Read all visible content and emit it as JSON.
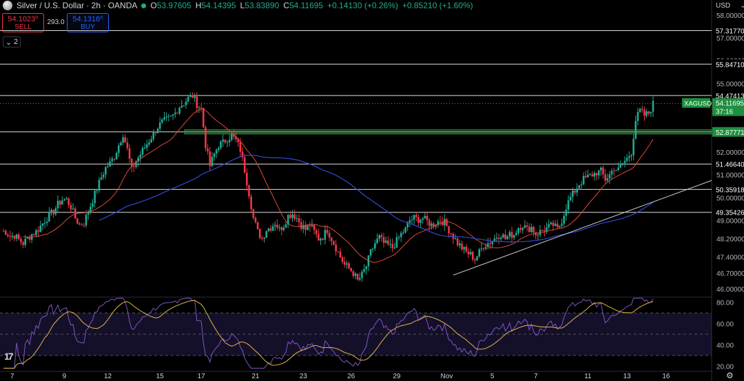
{
  "header": {
    "title": "Silver / U.S. Dollar · 2h · OANDA",
    "open_label": "O",
    "open": "53.97605",
    "high_label": "H",
    "high": "54.14395",
    "low_label": "L",
    "low": "53.83890",
    "close_label": "C",
    "close": "54.11695",
    "change": "+0.14130 (+0.26%)",
    "change2": "+0.85210 (+1.60%)"
  },
  "trade": {
    "sell_price": "54.1023⁰",
    "sell_label": "SELL",
    "spread": "293.0",
    "buy_price": "54.1316⁰",
    "buy_label": "BUY"
  },
  "indicator_toggle": {
    "count": "2"
  },
  "currency": "USD",
  "colors": {
    "up": "#22ab94",
    "down": "#f23645",
    "ma_fast": "#e04a3a",
    "ma_slow": "#3149d8",
    "rsi": "#7e57c2",
    "rsi_ma": "#e0b84a",
    "trendline": "#d9d9d9",
    "level": "#e0e0e0",
    "tag_green": "#1e8f3f",
    "rsi_band": "#15102a"
  },
  "chart_data": {
    "type": "candlestick",
    "symbol": "XAGUSD",
    "price_axis_ticks": [
      "58.00000",
      "57.00000",
      "56.00000",
      "55.00000",
      "52.00000",
      "51.00000",
      "50.00000",
      "49.00000",
      "48.20000",
      "47.40000",
      "46.70000",
      "46.00000"
    ],
    "x_ticks": [
      "7",
      "9",
      "12",
      "15",
      "17",
      "21",
      "23",
      "26",
      "29",
      "Nov",
      "5",
      "7",
      "11",
      "13",
      "16"
    ],
    "levels": [
      "57.31770",
      "55.84710",
      "54.47413",
      "52.87771",
      "51.46640",
      "50.35918",
      "49.35426"
    ],
    "support_zone": [
      "52.87771"
    ],
    "current_price": "54.11695",
    "current_tag": "XAGUSD",
    "countdown": "37:16",
    "anchors": [
      [
        0,
        48.55
      ],
      [
        2,
        48.5
      ],
      [
        4,
        48.3
      ],
      [
        6,
        48.35
      ],
      [
        8,
        48.15
      ],
      [
        10,
        48.0
      ],
      [
        12,
        48.2
      ],
      [
        14,
        48.4
      ],
      [
        16,
        48.5
      ],
      [
        18,
        48.75
      ],
      [
        20,
        49.0
      ],
      [
        22,
        49.2
      ],
      [
        24,
        49.4
      ],
      [
        26,
        49.7
      ],
      [
        28,
        49.9
      ],
      [
        30,
        49.9
      ],
      [
        32,
        49.6
      ],
      [
        34,
        49.1
      ],
      [
        36,
        48.8
      ],
      [
        38,
        48.9
      ],
      [
        40,
        49.4
      ],
      [
        42,
        49.9
      ],
      [
        44,
        50.4
      ],
      [
        46,
        50.9
      ],
      [
        48,
        51.3
      ],
      [
        50,
        51.5
      ],
      [
        52,
        51.8
      ],
      [
        54,
        52.3
      ],
      [
        56,
        52.8
      ],
      [
        58,
        52.1
      ],
      [
        60,
        51.2
      ],
      [
        62,
        51.6
      ],
      [
        64,
        51.9
      ],
      [
        66,
        52.2
      ],
      [
        68,
        52.5
      ],
      [
        70,
        52.8
      ],
      [
        72,
        53.1
      ],
      [
        74,
        53.3
      ],
      [
        76,
        53.4
      ],
      [
        78,
        53.5
      ],
      [
        80,
        53.7
      ],
      [
        82,
        54.0
      ],
      [
        84,
        54.15
      ],
      [
        86,
        54.35
      ],
      [
        88,
        54.45
      ],
      [
        90,
        54.1
      ],
      [
        92,
        53.9
      ],
      [
        94,
        52.3
      ],
      [
        96,
        51.4
      ],
      [
        98,
        51.9
      ],
      [
        100,
        52.3
      ],
      [
        102,
        52.4
      ],
      [
        104,
        52.6
      ],
      [
        106,
        52.7
      ],
      [
        108,
        52.5
      ],
      [
        110,
        52.1
      ],
      [
        112,
        51.2
      ],
      [
        114,
        50.2
      ],
      [
        116,
        49.1
      ],
      [
        118,
        48.5
      ],
      [
        120,
        48.2
      ],
      [
        122,
        48.6
      ],
      [
        124,
        48.7
      ],
      [
        126,
        48.9
      ],
      [
        128,
        48.6
      ],
      [
        130,
        48.8
      ],
      [
        132,
        49.2
      ],
      [
        134,
        49.3
      ],
      [
        136,
        49.1
      ],
      [
        138,
        48.8
      ],
      [
        140,
        48.6
      ],
      [
        142,
        48.8
      ],
      [
        144,
        48.5
      ],
      [
        146,
        48.2
      ],
      [
        148,
        48.3
      ],
      [
        150,
        48.6
      ],
      [
        152,
        48.2
      ],
      [
        154,
        47.8
      ],
      [
        156,
        47.4
      ],
      [
        158,
        47.05
      ],
      [
        160,
        46.9
      ],
      [
        162,
        46.7
      ],
      [
        164,
        46.35
      ],
      [
        166,
        46.6
      ],
      [
        168,
        47.0
      ],
      [
        170,
        47.6
      ],
      [
        172,
        48.0
      ],
      [
        174,
        48.25
      ],
      [
        176,
        48.0
      ],
      [
        178,
        47.9
      ],
      [
        180,
        47.8
      ],
      [
        182,
        48.1
      ],
      [
        184,
        48.4
      ],
      [
        186,
        48.6
      ],
      [
        188,
        49.0
      ],
      [
        190,
        49.1
      ],
      [
        192,
        49.05
      ],
      [
        194,
        49.1
      ],
      [
        196,
        48.95
      ],
      [
        198,
        48.8
      ],
      [
        200,
        48.9
      ],
      [
        202,
        49.0
      ],
      [
        204,
        48.9
      ],
      [
        206,
        48.6
      ],
      [
        208,
        48.3
      ],
      [
        210,
        48.0
      ],
      [
        212,
        47.8
      ],
      [
        214,
        47.6
      ],
      [
        216,
        47.5
      ],
      [
        218,
        47.3
      ],
      [
        220,
        47.6
      ],
      [
        222,
        47.9
      ],
      [
        224,
        48.0
      ],
      [
        226,
        48.1
      ],
      [
        228,
        48.3
      ],
      [
        230,
        48.4
      ],
      [
        232,
        48.2
      ],
      [
        234,
        48.35
      ],
      [
        236,
        48.4
      ],
      [
        238,
        48.7
      ],
      [
        240,
        48.8
      ],
      [
        242,
        48.6
      ],
      [
        244,
        48.7
      ],
      [
        246,
        48.4
      ],
      [
        248,
        48.5
      ],
      [
        250,
        48.6
      ],
      [
        252,
        48.7
      ],
      [
        254,
        48.8
      ],
      [
        256,
        48.6
      ],
      [
        258,
        49.0
      ],
      [
        260,
        49.6
      ],
      [
        262,
        50.0
      ],
      [
        264,
        50.3
      ],
      [
        266,
        50.6
      ],
      [
        268,
        50.8
      ],
      [
        270,
        50.9
      ],
      [
        272,
        51.0
      ],
      [
        274,
        51.1
      ],
      [
        276,
        51.15
      ],
      [
        278,
        50.8
      ],
      [
        280,
        51.0
      ],
      [
        282,
        51.3
      ],
      [
        284,
        51.2
      ],
      [
        286,
        51.5
      ],
      [
        288,
        51.7
      ],
      [
        290,
        52.0
      ],
      [
        292,
        53.4
      ],
      [
        294,
        53.8
      ],
      [
        296,
        53.6
      ],
      [
        298,
        53.7
      ],
      [
        300,
        54.1
      ]
    ],
    "series": [
      {
        "name": "MA fast"
      },
      {
        "name": "MA slow"
      },
      {
        "name": "trendline"
      }
    ],
    "rsi": {
      "ticks": [
        "80.00",
        "60.00",
        "40.00",
        "20.00"
      ],
      "ylim": [
        15,
        85
      ],
      "bands": [
        70,
        50,
        30
      ]
    }
  }
}
